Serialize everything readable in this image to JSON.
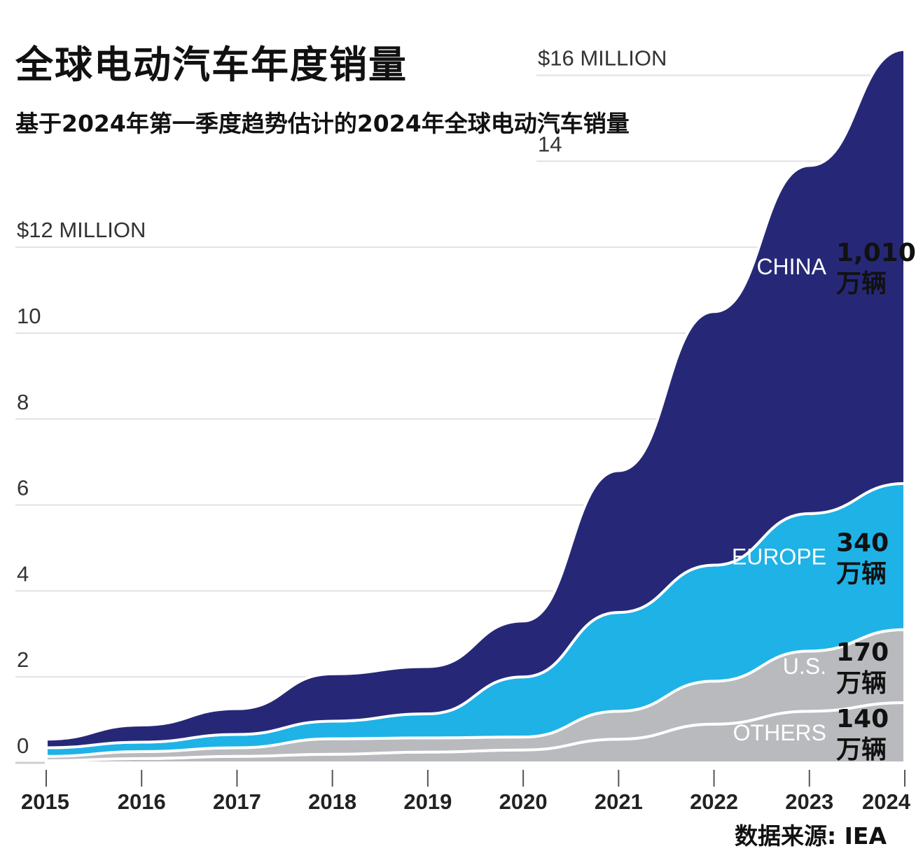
{
  "title": "全球电动汽车年度销量",
  "subtitle": "基于2024年第一季度趋势估计的2024年全球电动汽车销量",
  "source": "数据来源: IEA",
  "chart_data": {
    "type": "area",
    "stacked": true,
    "x": [
      2015,
      2016,
      2017,
      2018,
      2019,
      2020,
      2021,
      2022,
      2023,
      2024
    ],
    "xtick_labels": [
      "2015",
      "2016",
      "2017",
      "2018",
      "2019",
      "2020",
      "2021",
      "2022",
      "2023",
      "2024"
    ],
    "ylim": [
      0,
      17
    ],
    "yticks": [
      {
        "value": 0,
        "label": "0"
      },
      {
        "value": 2,
        "label": "2"
      },
      {
        "value": 4,
        "label": "4"
      },
      {
        "value": 6,
        "label": "6"
      },
      {
        "value": 8,
        "label": "8"
      },
      {
        "value": 10,
        "label": "10"
      },
      {
        "value": 12,
        "label": "$12 MILLION"
      },
      {
        "value": 14,
        "label": "14"
      },
      {
        "value": 16,
        "label": "$16 MILLION"
      }
    ],
    "grid": true,
    "series": [
      {
        "name": "OTHERS",
        "color": "#b9babd",
        "values": [
          0.05,
          0.1,
          0.15,
          0.2,
          0.25,
          0.3,
          0.55,
          0.9,
          1.2,
          1.4
        ],
        "value_label": [
          "140",
          "万辆"
        ]
      },
      {
        "name": "U.S.",
        "color": "#b9babd",
        "values": [
          0.1,
          0.16,
          0.2,
          0.36,
          0.33,
          0.3,
          0.65,
          1.0,
          1.4,
          1.7
        ],
        "value_label": [
          "170",
          "万辆"
        ]
      },
      {
        "name": "EUROPE",
        "color": "#1fb2e6",
        "values": [
          0.2,
          0.22,
          0.31,
          0.41,
          0.56,
          1.4,
          2.3,
          2.7,
          3.2,
          3.4
        ],
        "value_label": [
          "340",
          "万辆"
        ]
      },
      {
        "name": "CHINA",
        "color": "#262877",
        "values": [
          0.2,
          0.4,
          0.6,
          1.1,
          1.1,
          1.3,
          3.3,
          5.9,
          8.1,
          10.1
        ],
        "value_label": [
          "1,010",
          "万辆"
        ]
      }
    ]
  }
}
